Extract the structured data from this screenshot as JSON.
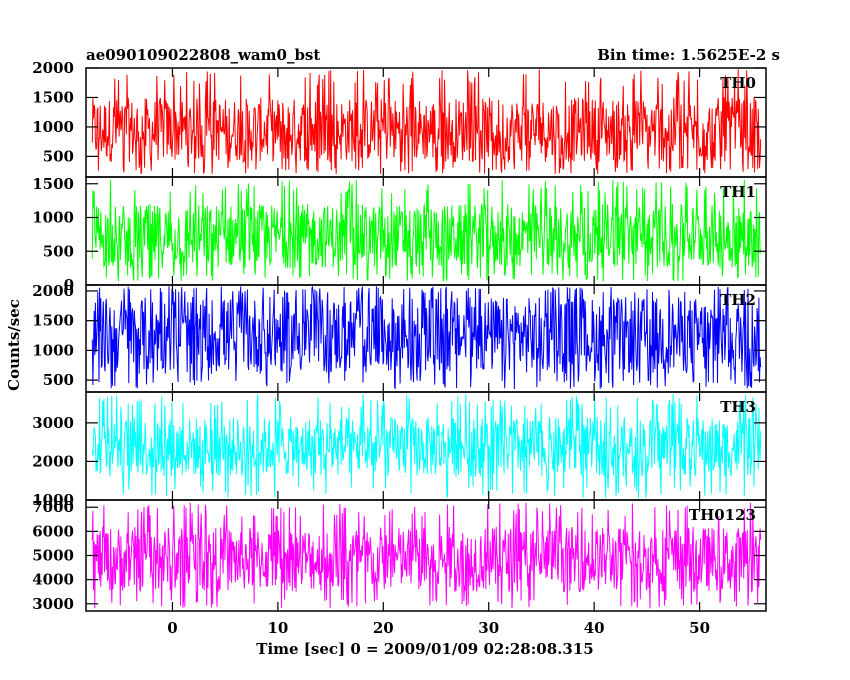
{
  "header": {
    "title": "ae090109022808_wam0_bst",
    "bin_time": "Bin time: 1.5625E-2 s"
  },
  "chart_data": {
    "type": "line",
    "xlabel": "Time [sec] 0 = 2009/01/09 02:28:08.315",
    "ylabel": "Counts/sec",
    "xlim": [
      -8.2,
      56.3
    ],
    "x_ticks": [
      0,
      10,
      20,
      30,
      40,
      50
    ],
    "x_tick_labels": [
      "0",
      "10",
      "20",
      "30",
      "40",
      "50"
    ],
    "x_range": [
      -7.6,
      55.8
    ],
    "grid": false,
    "panels": [
      {
        "name": "TH0",
        "color": "#ff0000",
        "ylim": [
          150,
          2000
        ],
        "yticks": [
          500,
          1000,
          1500,
          2000
        ],
        "ytick_labels": [
          "500",
          "1000",
          "1500",
          "2000"
        ],
        "mean": 950,
        "band": [
          400,
          1500
        ],
        "range": [
          200,
          1980
        ]
      },
      {
        "name": "TH1",
        "color": "#00ff00",
        "ylim": [
          0,
          1600
        ],
        "yticks": [
          0,
          500,
          1000,
          1500
        ],
        "ytick_labels": [
          "0",
          "500",
          "1000",
          "1500"
        ],
        "mean": 720,
        "band": [
          250,
          1200
        ],
        "range": [
          50,
          1560
        ]
      },
      {
        "name": "TH2",
        "color": "#0000ff",
        "ylim": [
          300,
          2100
        ],
        "yticks": [
          500,
          1000,
          1500,
          2000
        ],
        "ytick_labels": [
          "500",
          "1000",
          "1500",
          "2000"
        ],
        "mean": 1150,
        "band": [
          600,
          1900
        ],
        "range": [
          350,
          2080
        ]
      },
      {
        "name": "TH3",
        "color": "#00ffff",
        "ylim": [
          1000,
          3800
        ],
        "yticks": [
          1000,
          2000,
          3000
        ],
        "ytick_labels": [
          "1000",
          "2000",
          "3000"
        ],
        "mean": 2250,
        "band": [
          1600,
          3150
        ],
        "range": [
          1050,
          3750
        ]
      },
      {
        "name": "TH0123",
        "color": "#ff00ff",
        "ylim": [
          2700,
          7300
        ],
        "yticks": [
          3000,
          4000,
          5000,
          6000,
          7000
        ],
        "ytick_labels": [
          "3000",
          "4000",
          "5000",
          "6000",
          "7000"
        ],
        "mean": 4850,
        "band": [
          3500,
          6200
        ],
        "range": [
          2800,
          7200
        ]
      }
    ]
  }
}
